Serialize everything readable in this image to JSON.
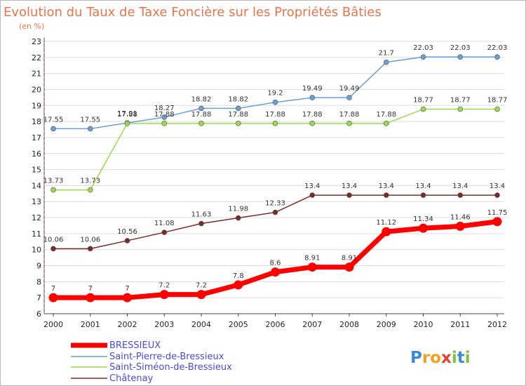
{
  "chart_data": {
    "type": "line",
    "title": "Evolution du Taux de Taxe Foncière sur les Propriétés Bâties",
    "subtitle": "(en %)",
    "xlabel": "",
    "ylabel": "",
    "categories": [
      "2000",
      "2001",
      "2002",
      "2003",
      "2004",
      "2005",
      "2006",
      "2007",
      "2008",
      "2009",
      "2010",
      "2011",
      "2012"
    ],
    "ylim": [
      6,
      23
    ],
    "yticks": [
      6,
      7,
      8,
      9,
      10,
      11,
      12,
      13,
      14,
      15,
      16,
      17,
      18,
      19,
      20,
      21,
      22,
      23
    ],
    "grid": "horizontal",
    "legend_position": "bottom-left",
    "series": [
      {
        "name": "BRESSIEUX",
        "color": "#ff0000",
        "values": [
          7,
          7,
          7,
          7.2,
          7.2,
          7.8,
          8.6,
          8.91,
          8.91,
          11.12,
          11.34,
          11.46,
          11.75
        ],
        "labels": [
          "7",
          "7",
          "7",
          "7.2",
          "7.2",
          "7.8",
          "8.6",
          "8.91",
          "8.91",
          "11.12",
          "11.34",
          "11.46",
          "11.75"
        ]
      },
      {
        "name": "Saint-Pierre-de-Bressieux",
        "color": "#6a9fd4",
        "values": [
          17.55,
          17.55,
          17.91,
          18.27,
          18.82,
          18.82,
          19.2,
          19.49,
          19.49,
          21.7,
          22.03,
          22.03,
          22.03
        ],
        "labels": [
          "17.55",
          "17.55",
          "17.91",
          "18.27",
          "18.82",
          "18.82",
          "19.2",
          "19.49",
          "19.49",
          "21.7",
          "22.03",
          "22.03",
          "22.03"
        ]
      },
      {
        "name": "Saint-Siméon-de-Bressieux",
        "color": "#9bd94a",
        "values": [
          13.73,
          13.73,
          17.88,
          17.88,
          17.88,
          17.88,
          17.88,
          17.88,
          17.88,
          17.88,
          18.77,
          18.77,
          18.77
        ],
        "labels": [
          "13.73",
          "13.73",
          "17.88",
          "17.88",
          "17.88",
          "17.88",
          "17.88",
          "17.88",
          "17.88",
          "17.88",
          "18.77",
          "18.77",
          "18.77"
        ]
      },
      {
        "name": "Châtenay",
        "color": "#7a2a2a",
        "values": [
          10.06,
          10.06,
          10.56,
          11.08,
          11.63,
          11.98,
          12.33,
          13.4,
          13.4,
          13.4,
          13.4,
          13.4,
          13.4
        ],
        "labels": [
          "10.06",
          "10.06",
          "10.56",
          "11.08",
          "11.63",
          "11.98",
          "12.33",
          "13.4",
          "13.4",
          "13.4",
          "13.4",
          "13.4",
          "13.4"
        ]
      }
    ]
  },
  "logo": {
    "text": "Proxiti",
    "letters": [
      {
        "ch": "P",
        "color": "#3b8ad6"
      },
      {
        "ch": "r",
        "color": "#f2a21f"
      },
      {
        "ch": "o",
        "color": "#f2a21f"
      },
      {
        "ch": "x",
        "color": "#e8402c"
      },
      {
        "ch": "i",
        "color": "#7cc242"
      },
      {
        "ch": "t",
        "color": "#3b8ad6"
      },
      {
        "ch": "i",
        "color": "#7cc242"
      }
    ]
  }
}
